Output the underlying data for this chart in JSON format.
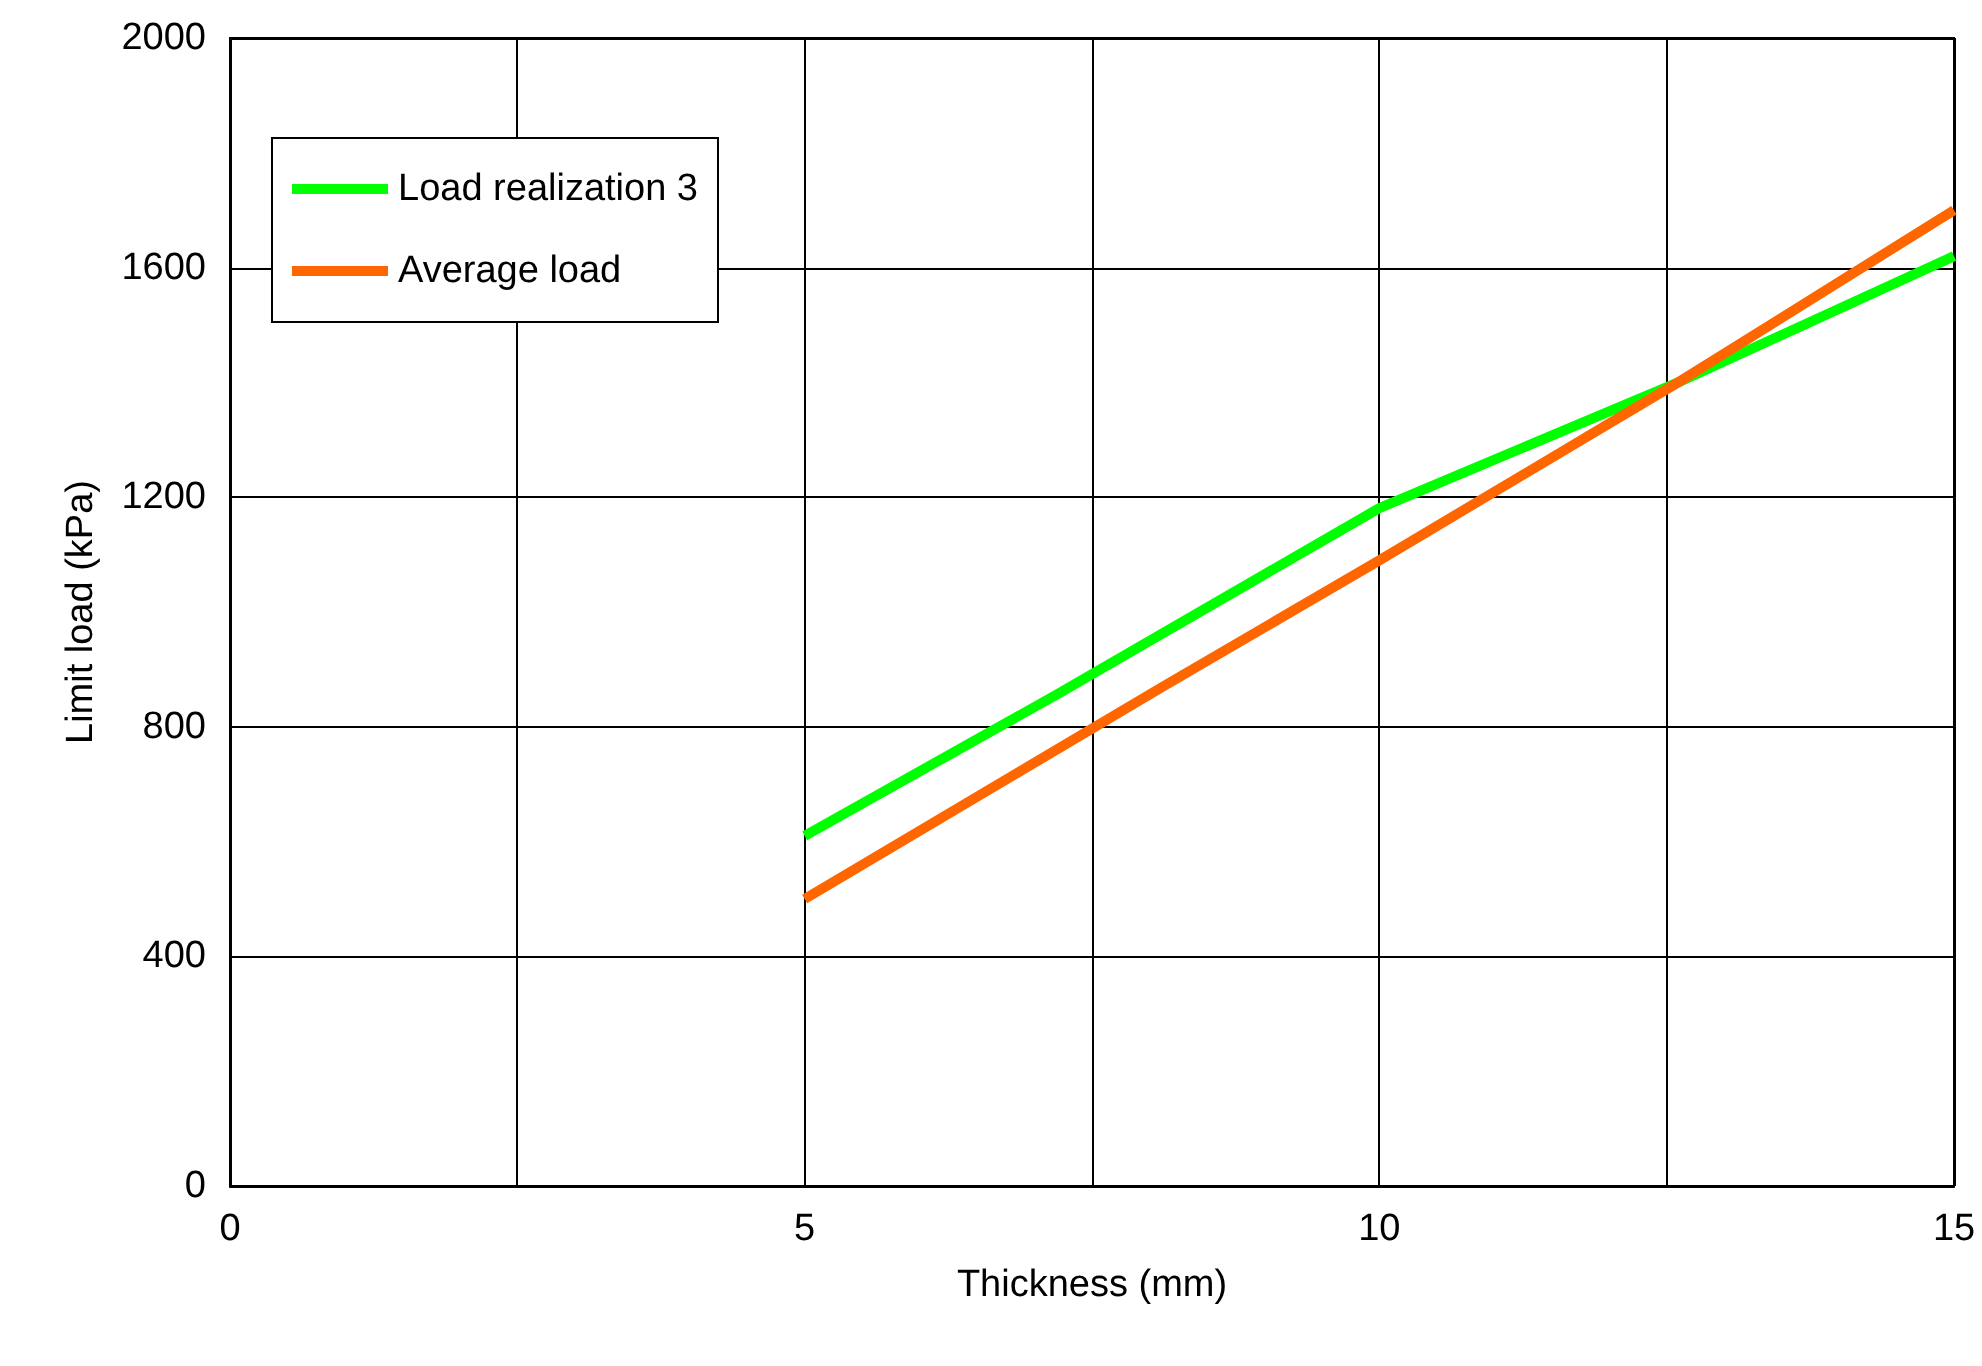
{
  "chart_data": {
    "type": "line",
    "xlabel": "Thickness (mm)",
    "ylabel": "Limit load (kPa)",
    "xlim": [
      0,
      15
    ],
    "ylim": [
      0,
      2000
    ],
    "xticks": [
      0,
      {
        "value": 2.5,
        "label": null
      },
      5,
      {
        "value": 7.5,
        "label": null
      },
      10,
      {
        "value": 12.5,
        "label": null
      },
      15
    ],
    "yticks": [
      0,
      400,
      800,
      1200,
      1600,
      2000
    ],
    "grid": true,
    "legend": "top left",
    "marker": "none",
    "line_style": "solid",
    "series": [
      {
        "name": "Load realization 3",
        "color": "#00ff00",
        "x": [
          5,
          7.2,
          10,
          12.6,
          15
        ],
        "values": [
          610,
          857,
          1181,
          1400,
          1620
        ]
      },
      {
        "name": "Average load",
        "color": "#ff6600",
        "x": [
          5,
          8.1,
          10,
          12.6,
          15
        ],
        "values": [
          500,
          868,
          1090,
          1400,
          1700
        ]
      }
    ]
  }
}
